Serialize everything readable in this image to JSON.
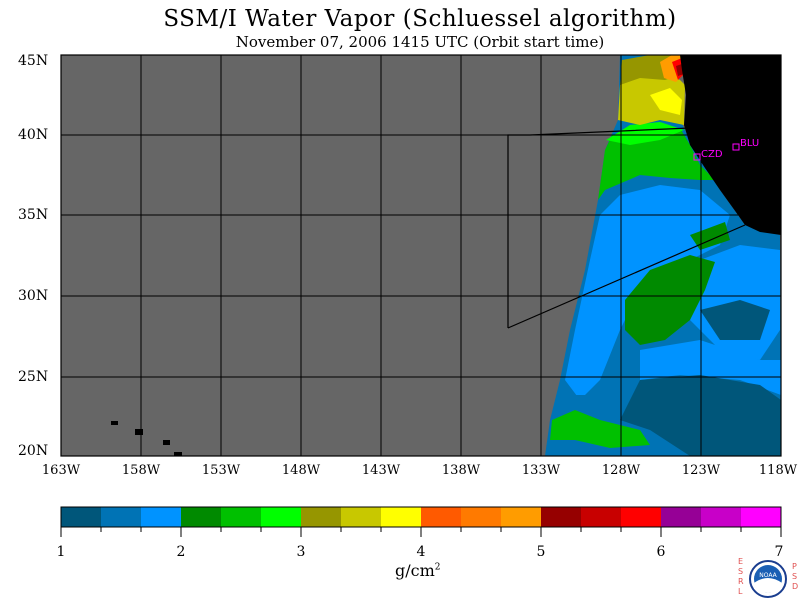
{
  "title": "SSM/I Water Vapor (Schluessel algorithm)",
  "subtitle": "November 07, 2006  1415 UTC  (Orbit start time)",
  "lat_labels": [
    "45N",
    "40N",
    "35N",
    "30N",
    "25N",
    "20N"
  ],
  "lon_labels": [
    "163W",
    "158W",
    "153W",
    "148W",
    "143W",
    "138W",
    "133W",
    "128W",
    "123W",
    "118W"
  ],
  "stations": [
    "CZD",
    "BLU"
  ],
  "colorbar": {
    "ticks": [
      "1",
      "2",
      "3",
      "4",
      "5",
      "6",
      "7"
    ],
    "unit": "g/cm",
    "unit_sup": "2",
    "colors": [
      "#00567a",
      "#0073b5",
      "#0093ff",
      "#008a00",
      "#00c000",
      "#00ff00",
      "#969600",
      "#c8c800",
      "#ffff00",
      "#ff5a00",
      "#ff7a00",
      "#ff9c00",
      "#960000",
      "#c80000",
      "#ff0000",
      "#960096",
      "#c800c8",
      "#ff00ff"
    ]
  },
  "logo": {
    "left_letters": [
      "E",
      "S",
      "R",
      "L"
    ],
    "right_letters": [
      "P",
      "S",
      "D"
    ],
    "badge": "NOAA"
  },
  "colors": {
    "no_data": "#666666",
    "land": "#000000",
    "station": "#ff00ff"
  }
}
